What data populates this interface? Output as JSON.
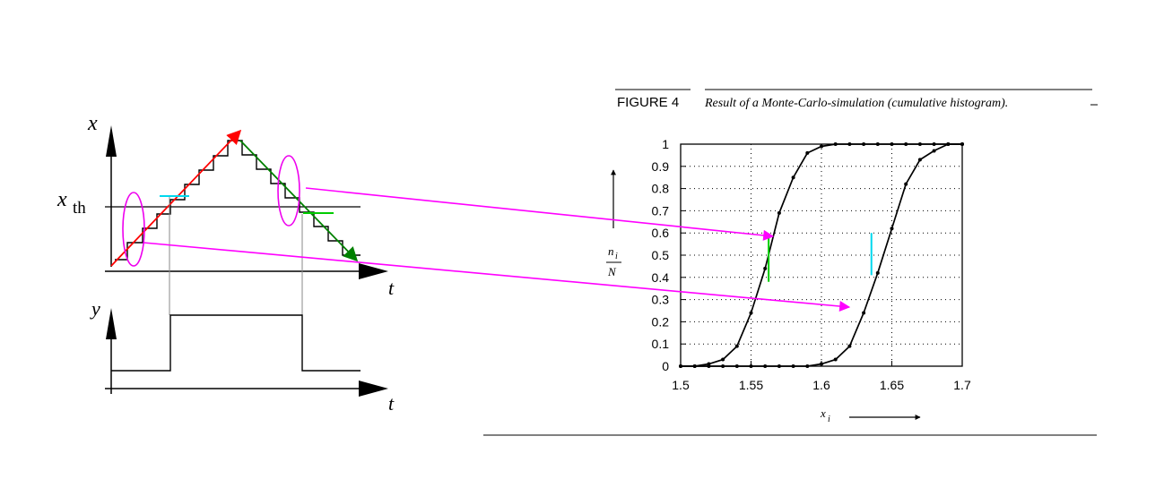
{
  "figure": {
    "label": "FIGURE 4",
    "caption": "Result of a Monte-Carlo-simulation (cumulative histogram)."
  },
  "left_diagram": {
    "x_axis_symbol": "x",
    "threshold_label_main": "x",
    "threshold_label_sub": "th",
    "t_label_top": "t",
    "y_axis_symbol": "y",
    "t_label_bottom": "t"
  },
  "colors": {
    "rising_arrow": "#ff0000",
    "falling_arrow": "#008000",
    "highlight_ellipse": "#ee00ee",
    "pointer_arrow": "#ff00ff",
    "upper_threshold_mark": "#00d8ee",
    "lower_threshold_mark": "#00cc00"
  },
  "chart_data": {
    "type": "line",
    "title": "",
    "xlabel_main": "x",
    "xlabel_sub": "i",
    "ylabel_num_main": "n",
    "ylabel_num_sub": "i",
    "ylabel_den": "N",
    "xlim": [
      1.5,
      1.7
    ],
    "ylim": [
      0,
      1
    ],
    "x_ticks": [
      "1.5",
      "1.55",
      "1.6",
      "1.65",
      "1.7"
    ],
    "y_ticks": [
      "0",
      "0.1",
      "0.2",
      "0.3",
      "0.4",
      "0.5",
      "0.6",
      "0.7",
      "0.8",
      "0.9",
      "1"
    ],
    "grid": true,
    "series": [
      {
        "x": [
          1.5,
          1.51,
          1.52,
          1.53,
          1.54,
          1.55,
          1.56,
          1.57,
          1.58,
          1.59,
          1.6,
          1.61,
          1.62,
          1.63,
          1.64,
          1.65,
          1.66,
          1.67,
          1.68,
          1.69,
          1.7
        ],
        "y": [
          0,
          0,
          0.01,
          0.03,
          0.09,
          0.24,
          0.44,
          0.69,
          0.85,
          0.96,
          0.99,
          1,
          1,
          1,
          1,
          1,
          1,
          1,
          1,
          1,
          1
        ]
      },
      {
        "x": [
          1.5,
          1.51,
          1.52,
          1.53,
          1.54,
          1.55,
          1.56,
          1.57,
          1.58,
          1.59,
          1.6,
          1.61,
          1.62,
          1.63,
          1.64,
          1.65,
          1.66,
          1.67,
          1.68,
          1.69,
          1.7
        ],
        "y": [
          0,
          0,
          0,
          0,
          0,
          0,
          0,
          0,
          0,
          0,
          0.01,
          0.03,
          0.09,
          0.24,
          0.42,
          0.62,
          0.82,
          0.93,
          0.97,
          1,
          1
        ]
      }
    ],
    "threshold_marks": [
      {
        "x": 1.5625,
        "y_from": 0.38,
        "y_to": 0.58,
        "color": "#00cc00"
      },
      {
        "x": 1.6355,
        "y_from": 0.41,
        "y_to": 0.6,
        "color": "#00d8ee"
      }
    ]
  }
}
